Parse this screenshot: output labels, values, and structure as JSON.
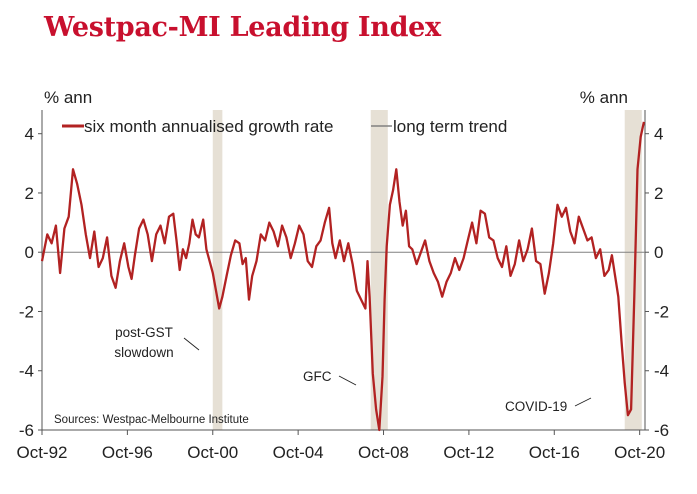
{
  "chart_data": {
    "type": "line",
    "title": "Westpac-MI Leading Index",
    "ylabel_left": "% ann",
    "ylabel_right": "% ann",
    "ylim": [
      -6,
      4.8
    ],
    "yticks": [
      4,
      2,
      0,
      -2,
      -4,
      -6
    ],
    "xlim": [
      1992.75,
      2021.0
    ],
    "xticks": [
      {
        "x": 1992.75,
        "label": "Oct-92"
      },
      {
        "x": 1996.75,
        "label": "Oct-96"
      },
      {
        "x": 2000.75,
        "label": "Oct-00"
      },
      {
        "x": 2004.75,
        "label": "Oct-04"
      },
      {
        "x": 2008.75,
        "label": "Oct-08"
      },
      {
        "x": 2012.75,
        "label": "Oct-12"
      },
      {
        "x": 2016.75,
        "label": "Oct-16"
      },
      {
        "x": 2020.75,
        "label": "Oct-20"
      }
    ],
    "grid": false,
    "legend_position": "top",
    "series": [
      {
        "name": "six month annualised growth rate",
        "color": "#b22222",
        "points": [
          [
            1992.75,
            -0.3
          ],
          [
            1993.0,
            0.6
          ],
          [
            1993.2,
            0.3
          ],
          [
            1993.4,
            0.9
          ],
          [
            1993.6,
            -0.7
          ],
          [
            1993.8,
            0.8
          ],
          [
            1994.0,
            1.2
          ],
          [
            1994.2,
            2.8
          ],
          [
            1994.4,
            2.3
          ],
          [
            1994.6,
            1.6
          ],
          [
            1994.8,
            0.6
          ],
          [
            1995.0,
            -0.2
          ],
          [
            1995.2,
            0.7
          ],
          [
            1995.4,
            -0.5
          ],
          [
            1995.6,
            -0.2
          ],
          [
            1995.8,
            0.5
          ],
          [
            1996.0,
            -0.8
          ],
          [
            1996.2,
            -1.2
          ],
          [
            1996.4,
            -0.3
          ],
          [
            1996.6,
            0.3
          ],
          [
            1996.8,
            -0.5
          ],
          [
            1996.95,
            -0.9
          ],
          [
            1997.1,
            -0.1
          ],
          [
            1997.3,
            0.8
          ],
          [
            1997.5,
            1.1
          ],
          [
            1997.7,
            0.6
          ],
          [
            1997.9,
            -0.3
          ],
          [
            1998.1,
            0.6
          ],
          [
            1998.3,
            0.9
          ],
          [
            1998.5,
            0.3
          ],
          [
            1998.7,
            1.2
          ],
          [
            1998.9,
            1.3
          ],
          [
            1999.05,
            0.4
          ],
          [
            1999.2,
            -0.6
          ],
          [
            1999.35,
            0.1
          ],
          [
            1999.5,
            -0.2
          ],
          [
            1999.65,
            0.3
          ],
          [
            1999.8,
            1.1
          ],
          [
            1999.95,
            0.6
          ],
          [
            2000.1,
            0.5
          ],
          [
            2000.3,
            1.1
          ],
          [
            2000.45,
            0.1
          ],
          [
            2000.6,
            -0.3
          ],
          [
            2000.75,
            -0.7
          ],
          [
            2000.9,
            -1.3
          ],
          [
            2001.05,
            -1.9
          ],
          [
            2001.2,
            -1.5
          ],
          [
            2001.4,
            -0.8
          ],
          [
            2001.6,
            -0.1
          ],
          [
            2001.8,
            0.4
          ],
          [
            2002.0,
            0.3
          ],
          [
            2002.15,
            -0.4
          ],
          [
            2002.3,
            -0.2
          ],
          [
            2002.45,
            -1.6
          ],
          [
            2002.6,
            -0.8
          ],
          [
            2002.8,
            -0.3
          ],
          [
            2003.0,
            0.6
          ],
          [
            2003.2,
            0.4
          ],
          [
            2003.4,
            1.0
          ],
          [
            2003.6,
            0.7
          ],
          [
            2003.8,
            0.2
          ],
          [
            2004.0,
            0.9
          ],
          [
            2004.2,
            0.5
          ],
          [
            2004.4,
            -0.2
          ],
          [
            2004.6,
            0.3
          ],
          [
            2004.8,
            0.9
          ],
          [
            2005.0,
            0.6
          ],
          [
            2005.2,
            -0.3
          ],
          [
            2005.4,
            -0.5
          ],
          [
            2005.6,
            0.2
          ],
          [
            2005.8,
            0.4
          ],
          [
            2006.0,
            1.0
          ],
          [
            2006.2,
            1.5
          ],
          [
            2006.35,
            0.3
          ],
          [
            2006.5,
            -0.2
          ],
          [
            2006.7,
            0.4
          ],
          [
            2006.9,
            -0.3
          ],
          [
            2007.1,
            0.3
          ],
          [
            2007.3,
            -0.4
          ],
          [
            2007.5,
            -1.3
          ],
          [
            2007.7,
            -1.6
          ],
          [
            2007.9,
            -1.9
          ],
          [
            2008.0,
            -0.3
          ],
          [
            2008.1,
            -1.5
          ],
          [
            2008.25,
            -4.1
          ],
          [
            2008.4,
            -5.3
          ],
          [
            2008.55,
            -6.0
          ],
          [
            2008.7,
            -4.2
          ],
          [
            2008.8,
            -1.6
          ],
          [
            2008.9,
            0.2
          ],
          [
            2009.05,
            1.6
          ],
          [
            2009.2,
            2.1
          ],
          [
            2009.35,
            2.8
          ],
          [
            2009.5,
            1.7
          ],
          [
            2009.65,
            0.9
          ],
          [
            2009.8,
            1.4
          ],
          [
            2009.95,
            0.2
          ],
          [
            2010.1,
            0.1
          ],
          [
            2010.3,
            -0.4
          ],
          [
            2010.5,
            0.0
          ],
          [
            2010.7,
            0.4
          ],
          [
            2010.9,
            -0.3
          ],
          [
            2011.1,
            -0.7
          ],
          [
            2011.3,
            -1.0
          ],
          [
            2011.5,
            -1.5
          ],
          [
            2011.7,
            -1.0
          ],
          [
            2011.9,
            -0.7
          ],
          [
            2012.1,
            -0.2
          ],
          [
            2012.3,
            -0.6
          ],
          [
            2012.5,
            -0.2
          ],
          [
            2012.7,
            0.4
          ],
          [
            2012.9,
            1.0
          ],
          [
            2013.1,
            0.3
          ],
          [
            2013.3,
            1.4
          ],
          [
            2013.5,
            1.3
          ],
          [
            2013.7,
            0.5
          ],
          [
            2013.9,
            0.4
          ],
          [
            2014.1,
            -0.2
          ],
          [
            2014.3,
            -0.5
          ],
          [
            2014.5,
            0.2
          ],
          [
            2014.7,
            -0.8
          ],
          [
            2014.9,
            -0.4
          ],
          [
            2015.1,
            0.4
          ],
          [
            2015.3,
            -0.3
          ],
          [
            2015.5,
            0.1
          ],
          [
            2015.7,
            0.8
          ],
          [
            2015.9,
            -0.3
          ],
          [
            2016.1,
            -0.4
          ],
          [
            2016.3,
            -1.4
          ],
          [
            2016.5,
            -0.7
          ],
          [
            2016.7,
            0.3
          ],
          [
            2016.9,
            1.6
          ],
          [
            2017.1,
            1.2
          ],
          [
            2017.3,
            1.5
          ],
          [
            2017.5,
            0.7
          ],
          [
            2017.7,
            0.3
          ],
          [
            2017.9,
            1.2
          ],
          [
            2018.1,
            0.8
          ],
          [
            2018.3,
            0.4
          ],
          [
            2018.5,
            0.5
          ],
          [
            2018.7,
            -0.2
          ],
          [
            2018.9,
            0.1
          ],
          [
            2019.1,
            -0.8
          ],
          [
            2019.3,
            -0.6
          ],
          [
            2019.45,
            -0.1
          ],
          [
            2019.6,
            -0.8
          ],
          [
            2019.75,
            -1.5
          ],
          [
            2019.9,
            -3.0
          ],
          [
            2020.05,
            -4.4
          ],
          [
            2020.2,
            -5.5
          ],
          [
            2020.35,
            -5.3
          ],
          [
            2020.5,
            -1.5
          ],
          [
            2020.65,
            2.8
          ],
          [
            2020.8,
            3.9
          ],
          [
            2020.95,
            4.4
          ]
        ]
      },
      {
        "name": "long term trend",
        "color": "#808080",
        "value": 0
      }
    ],
    "shaded_periods": [
      {
        "start": 2000.75,
        "end": 2001.2
      },
      {
        "start": 2008.15,
        "end": 2008.95
      },
      {
        "start": 2020.05,
        "end": 2020.85
      }
    ],
    "annotations": [
      {
        "lines": [
          "post-GST",
          "slowdown"
        ]
      },
      {
        "lines": [
          "GFC"
        ]
      },
      {
        "lines": [
          "COVID-19"
        ]
      }
    ],
    "source": "Sources: Westpac-Melbourne Institute"
  }
}
